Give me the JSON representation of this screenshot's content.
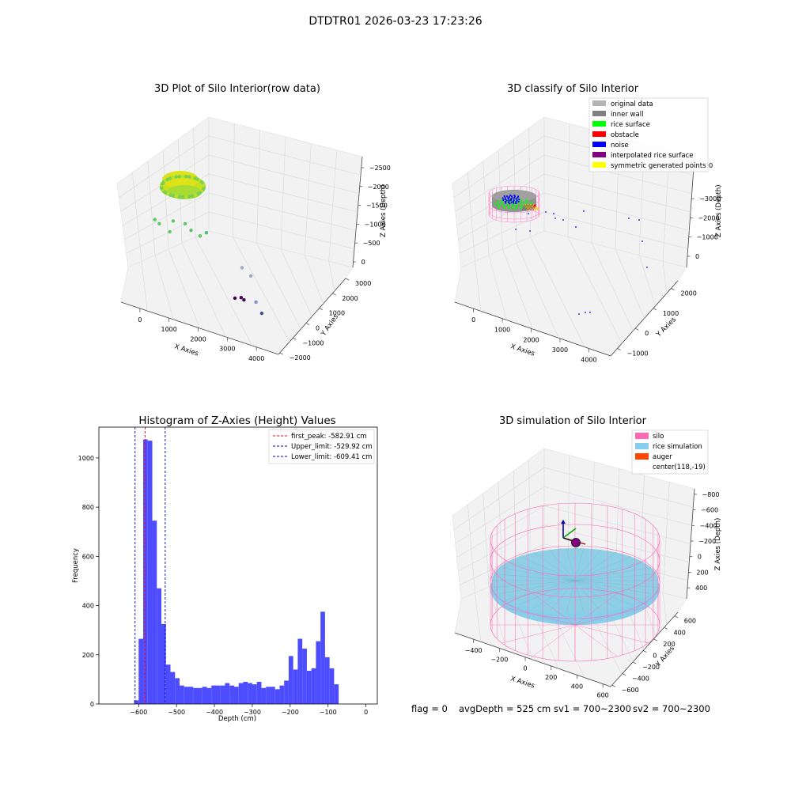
{
  "suptitle": "DTDTR01 2026-03-23 17:23:26",
  "status_line": {
    "flag": "flag = 0",
    "avg_depth": "avgDepth = 525 cm",
    "sv1": "sv1 = 700~2300",
    "sv2": "sv2 = 700~2300"
  },
  "colors": {
    "hist_bar": "#4d4dff",
    "first_peak_line": "#ff0000",
    "limit_line": "#0000aa",
    "silo": "#ff69b4",
    "rice_simulation": "#87ceeb",
    "auger": "#ff4500",
    "pane": "#f2f2f2",
    "pane_grid": "#dcdcdc"
  },
  "chart_data": [
    {
      "type": "scatter3d",
      "title": "3D Plot of Silo Interior(row data)",
      "xlabel": "X Axies",
      "ylabel": "Y Axies",
      "zlabel": "Z Axies (Depth)",
      "xticks": [
        "0",
        "1000",
        "2000",
        "3000",
        "4000"
      ],
      "yticks": [
        "3000",
        "2000",
        "1000",
        "0",
        "−1000",
        "−2000"
      ],
      "zticks": [
        "0",
        "−500",
        "−1000",
        "−1500",
        "−2000",
        "−2500"
      ],
      "xlim": [
        -600,
        4600
      ],
      "ylim": [
        -2300,
        3200
      ],
      "zlim": [
        -2800,
        200
      ],
      "points": [
        {
          "x": 300,
          "y": 2800,
          "z": -1300,
          "c": "#5ec962"
        },
        {
          "x": 450,
          "y": 2700,
          "z": -1350,
          "c": "#5ec962"
        },
        {
          "x": 800,
          "y": 2600,
          "z": -1450,
          "c": "#5ec962"
        },
        {
          "x": 900,
          "y": 2900,
          "z": -1200,
          "c": "#5ec962"
        },
        {
          "x": 1300,
          "y": 2800,
          "z": -1150,
          "c": "#5ec962"
        },
        {
          "x": 1500,
          "y": 2700,
          "z": -1250,
          "c": "#5ec962"
        },
        {
          "x": 1800,
          "y": 2600,
          "z": -1300,
          "c": "#5ec962"
        },
        {
          "x": 2000,
          "y": 2800,
          "z": -1200,
          "c": "#4ac16d"
        },
        {
          "x": 3200,
          "y": 2300,
          "z": -1700,
          "c": "#a0a8c8"
        },
        {
          "x": 3500,
          "y": 2100,
          "z": -1800,
          "c": "#a0a8c8"
        },
        {
          "x": 3700,
          "y": 1400,
          "z": -2300,
          "c": "#8090c0"
        },
        {
          "x": 3900,
          "y": 1200,
          "z": -2500,
          "c": "#3b528b"
        },
        {
          "x": 3100,
          "y": -800,
          "z": -2000,
          "c": "#440154"
        },
        {
          "x": 3300,
          "y": -700,
          "z": -1950,
          "c": "#440154"
        },
        {
          "x": 3400,
          "y": -900,
          "z": -1950,
          "c": "#440154"
        }
      ]
    },
    {
      "type": "scatter3d",
      "title": "3D classify of Silo Interior",
      "xlabel": "X Axies",
      "ylabel": "Y Axies",
      "zlabel": "Z Axies (Depth)",
      "xticks": [
        "0",
        "1000",
        "2000",
        "3000",
        "4000"
      ],
      "yticks": [
        "2000",
        "1000",
        "0",
        "−1000"
      ],
      "zticks": [
        "0",
        "−1000",
        "−2000",
        "−3000"
      ],
      "partial_ztick": "00",
      "legend": [
        {
          "label": "original data",
          "color": "#b3b3b3"
        },
        {
          "label": "inner wall",
          "color": "#808080"
        },
        {
          "label": "rice surface",
          "color": "#00ff00"
        },
        {
          "label": "obstacle",
          "color": "#ff0000"
        },
        {
          "label": "noise",
          "color": "#0000ff"
        },
        {
          "label": "interpolated rice surface",
          "color": "#800080"
        },
        {
          "label": "symmetric generated points",
          "color": "#ffff00"
        }
      ],
      "legend_position": "top-right"
    },
    {
      "type": "bar",
      "title": "Histogram of Z-Axies (Height) Values",
      "xlabel": "Depth (cm)",
      "ylabel": "Frequency",
      "xlim": [
        -705,
        30
      ],
      "ylim": [
        0,
        1125
      ],
      "xticks": [
        -600,
        -500,
        -400,
        -300,
        -200,
        -100,
        0
      ],
      "yticks": [
        0,
        200,
        400,
        600,
        800,
        1000
      ],
      "bin_start": -612,
      "bin_width": 12,
      "values": [
        15,
        265,
        1075,
        1070,
        745,
        470,
        325,
        160,
        130,
        105,
        75,
        70,
        70,
        65,
        65,
        70,
        65,
        75,
        75,
        75,
        85,
        75,
        70,
        85,
        90,
        85,
        80,
        90,
        65,
        70,
        70,
        60,
        75,
        95,
        195,
        140,
        265,
        225,
        135,
        145,
        255,
        375,
        190,
        145,
        80
      ],
      "lines": [
        {
          "x": -582.91,
          "label": "first_peak: -582.91 cm",
          "role": "peak"
        },
        {
          "x": -529.92,
          "label": "Upper_limit: -529.92 cm",
          "role": "limit"
        },
        {
          "x": -609.41,
          "label": "Lower_limit: -609.41 cm",
          "role": "limit"
        }
      ],
      "legend_position": "top-right"
    },
    {
      "type": "surface3d",
      "title": "3D simulation of Silo Interior",
      "xlabel": "X Axies",
      "ylabel": "Y Axies",
      "zlabel": "Z Axies (Depth)",
      "xticks": [
        "−400",
        "−200",
        "0",
        "200",
        "400",
        "600"
      ],
      "yticks": [
        "600",
        "400",
        "200",
        "0",
        "−200",
        "−400",
        "−600"
      ],
      "zticks": [
        "400",
        "200",
        "0",
        "−200",
        "−400",
        "−600",
        "−800"
      ],
      "legend": [
        {
          "label": "silo",
          "color": "#ff69b4"
        },
        {
          "label": "rice simulation",
          "color": "#87ceeb"
        },
        {
          "label": "auger",
          "color": "#ff4500"
        },
        {
          "label": "center(118,-19)",
          "color": ""
        }
      ],
      "legend_position": "top-right"
    }
  ]
}
